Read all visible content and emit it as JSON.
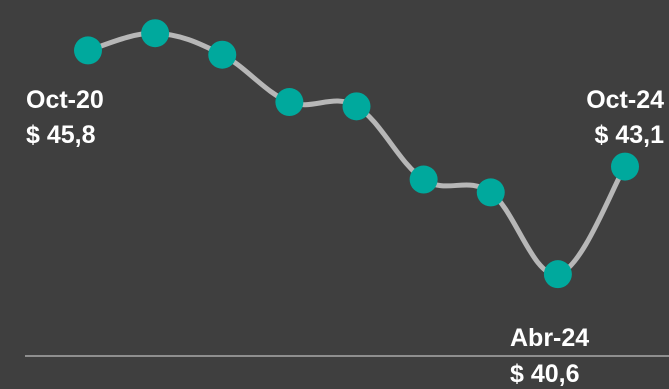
{
  "chart_data": {
    "type": "line",
    "x": [
      "Oct-20",
      "",
      "",
      "",
      "",
      "",
      "",
      "Abr-24",
      "Oct-24"
    ],
    "series": [
      {
        "values": [
          45.8,
          46.2,
          45.7,
          44.6,
          44.5,
          42.8,
          42.5,
          40.6,
          43.1
        ]
      }
    ],
    "annotations": [
      {
        "index": 0,
        "date": "Oct-20",
        "value": "$ 45,8"
      },
      {
        "index": 7,
        "date": "Abr-24",
        "value": "$ 40,6"
      },
      {
        "index": 8,
        "date": "Oct-24",
        "value": "$ 43,1"
      }
    ],
    "ylim": [
      40.0,
      46.6
    ],
    "grid": false,
    "legend": "none",
    "colors": {
      "background": "#3f3f3f",
      "line": "#b7b7b7",
      "marker": "#00a99d",
      "axis": "#aaaaaa",
      "text": "#ffffff"
    }
  }
}
